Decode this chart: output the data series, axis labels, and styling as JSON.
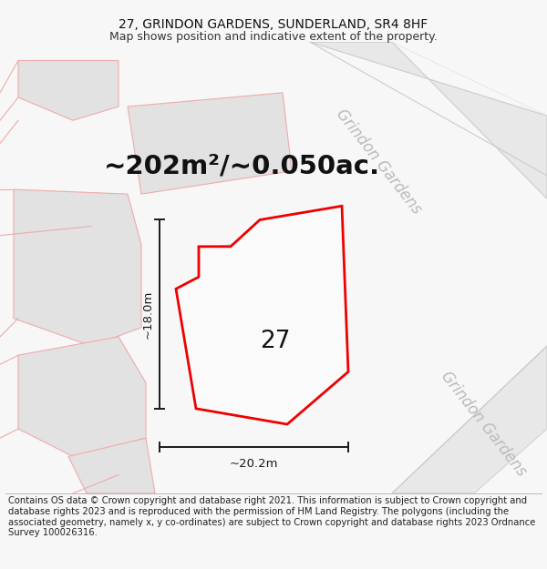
{
  "title_line1": "27, GRINDON GARDENS, SUNDERLAND, SR4 8HF",
  "title_line2": "Map shows position and indicative extent of the property.",
  "area_text": "~202m²/~0.050ac.",
  "label_number": "27",
  "dim_height": "~18.0m",
  "dim_width": "~20.2m",
  "street_label1": "Grindon Gardens",
  "street_label2": "Grindon Gardens",
  "footer_text": "Contains OS data © Crown copyright and database right 2021. This information is subject to Crown copyright and database rights 2023 and is reproduced with the permission of HM Land Registry. The polygons (including the associated geometry, namely x, y co-ordinates) are subject to Crown copyright and database rights 2023 Ordnance Survey 100026316.",
  "bg_color": "#f7f7f7",
  "map_bg": "#ffffff",
  "road_fill": "#e8e8e8",
  "road_stroke": "#cccccc",
  "plot_fill": "#fafafa",
  "plot_stroke": "#ee0000",
  "building_fill": "#e2e2e2",
  "dim_color": "#1a1a1a",
  "street_text_color": "#bbbbbb",
  "pink": "#f0aaaa",
  "title_fontsize": 10,
  "subtitle_fontsize": 9,
  "area_fontsize": 21,
  "label_fontsize": 19,
  "dim_fontsize": 9.5,
  "street_fontsize": 12,
  "footer_fontsize": 7.2
}
